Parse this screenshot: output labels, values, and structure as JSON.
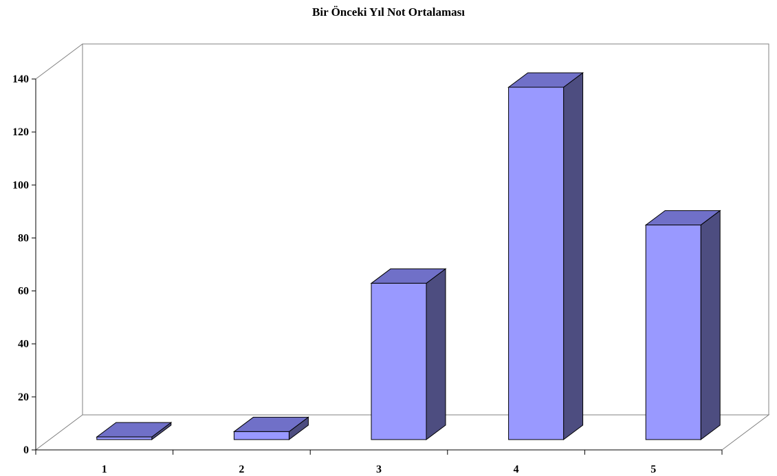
{
  "chart_data": {
    "type": "bar",
    "title": "Bir Önceki Yıl Not Ortalaması",
    "categories": [
      "1",
      "2",
      "3",
      "4",
      "5"
    ],
    "values": [
      1,
      3,
      59,
      133,
      81
    ],
    "ylim": [
      0,
      140
    ],
    "yticks": [
      0,
      20,
      40,
      60,
      80,
      100,
      120,
      140
    ],
    "grid": false,
    "style": "3d-column",
    "colors": {
      "front": "#9999FF",
      "top": "#7070C8",
      "side": "#4D4D80",
      "frame": "#808080"
    }
  }
}
